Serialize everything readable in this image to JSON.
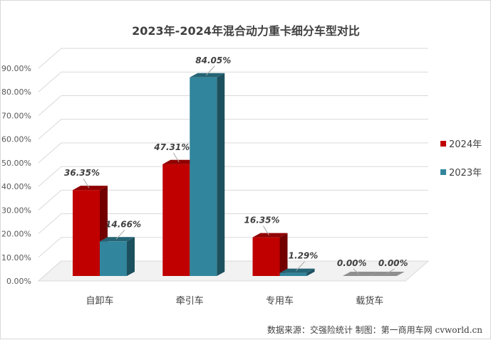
{
  "chart_data": {
    "type": "bar",
    "title": "2023年-2024年混合动力重卡细分车型对比",
    "categories": [
      "自卸车",
      "牵引车",
      "专用车",
      "载货车"
    ],
    "series": [
      {
        "name": "2024年",
        "color": "#c00000",
        "values": [
          36.35,
          47.31,
          16.35,
          0.0
        ],
        "labels": [
          "36.35%",
          "47.31%",
          "16.35%",
          "0.00%"
        ]
      },
      {
        "name": "2023年",
        "color": "#31859c",
        "values": [
          14.66,
          84.05,
          1.29,
          0.0
        ],
        "labels": [
          "14.66%",
          "84.05%",
          "1.29%",
          "0.00%"
        ]
      }
    ],
    "yticks": [
      "0.00%",
      "10.00%",
      "20.00%",
      "30.00%",
      "40.00%",
      "50.00%",
      "60.00%",
      "70.00%",
      "80.00%",
      "90.00%"
    ],
    "ylim": [
      0,
      90
    ],
    "xlabel": "",
    "ylabel": "",
    "grid": true,
    "legend_position": "right",
    "style": "3d-bar"
  },
  "source_note": "数据来源：交强险统计  制图：第一商用车网 cvworld.cn"
}
